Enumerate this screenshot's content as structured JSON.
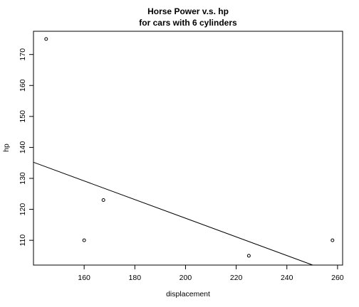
{
  "chart_data": {
    "type": "scatter",
    "title": [
      "Horse Power v.s. hp",
      "for cars with  6 cylinders"
    ],
    "xlabel": "displacement",
    "ylabel": "hp",
    "xlim": [
      140,
      262
    ],
    "ylim": [
      102,
      177.5
    ],
    "x_ticks": [
      160,
      180,
      200,
      220,
      240,
      260
    ],
    "y_ticks": [
      110,
      120,
      130,
      140,
      150,
      160,
      170
    ],
    "points": [
      {
        "x": 145.0,
        "y": 175
      },
      {
        "x": 160.0,
        "y": 110
      },
      {
        "x": 167.6,
        "y": 123
      },
      {
        "x": 225.0,
        "y": 105
      },
      {
        "x": 258.0,
        "y": 110
      }
    ],
    "fit_line": {
      "x1": 140,
      "y1": 135.2,
      "x2": 250.2,
      "y2": 102
    }
  }
}
